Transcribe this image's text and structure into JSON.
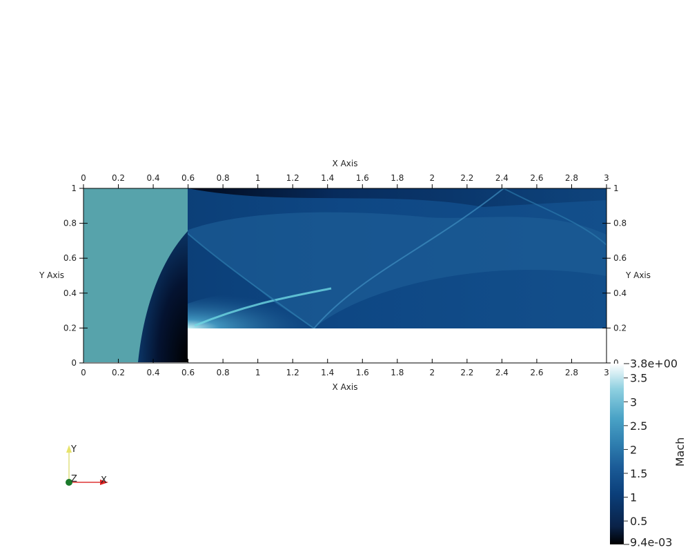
{
  "plot": {
    "x_axis_title": "X Axis",
    "y_axis_title": "Y Axis",
    "x_ticks": [
      "0",
      "0.2",
      "0.4",
      "0.6",
      "0.8",
      "1",
      "1.2",
      "1.4",
      "1.6",
      "1.8",
      "2",
      "2.2",
      "2.4",
      "2.6",
      "2.8",
      "3"
    ],
    "y_ticks": [
      "0",
      "0.2",
      "0.4",
      "0.6",
      "0.8",
      "1"
    ],
    "x_range": [
      0,
      3
    ],
    "y_range": [
      0,
      1
    ],
    "step": {
      "x_start": 0.6,
      "y_top": 0.2
    }
  },
  "colorbar": {
    "title": "Mach",
    "max_label": "3.8e+00",
    "min_label": "9.4e-03",
    "labels": [
      "3.5",
      "3",
      "2.5",
      "2",
      "1.5",
      "1",
      "0.5"
    ],
    "label_values": [
      3.5,
      3,
      2.5,
      2,
      1.5,
      1,
      0.5
    ],
    "range": [
      0.0094,
      3.8
    ],
    "colors": [
      "#000000",
      "#0a2248",
      "#0b3f7a",
      "#1a5a96",
      "#2f7fb0",
      "#4aa3c6",
      "#8fd0e0",
      "#ffffff"
    ]
  },
  "orientation": {
    "x_label": "X",
    "y_label": "Y",
    "z_label": "Z"
  },
  "field_colors": {
    "inflow": "#57a3ab",
    "dark": "#05193c",
    "mid": "#0b3e76",
    "light": "#1e5f98",
    "bright": "#6fd8e2"
  }
}
